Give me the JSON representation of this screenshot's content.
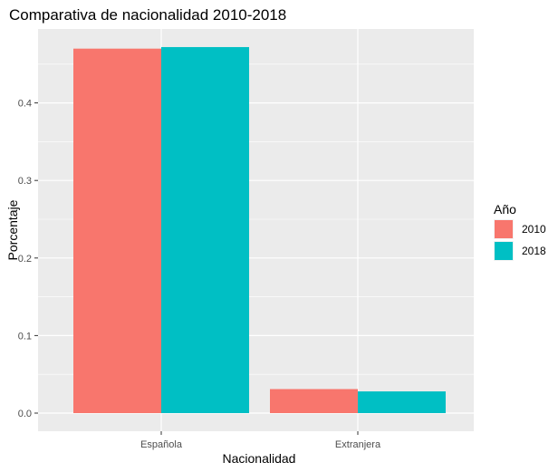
{
  "chart_data": {
    "type": "bar",
    "title": "Comparativa de nacionalidad 2010-2018",
    "xlabel": "Nacionalidad",
    "ylabel": "Porcentaje",
    "categories": [
      "Española",
      "Extranjera"
    ],
    "series": [
      {
        "name": "2010",
        "values": [
          0.47,
          0.031
        ]
      },
      {
        "name": "2018",
        "values": [
          0.472,
          0.028
        ]
      }
    ],
    "ylim": [
      0,
      0.5
    ],
    "yticks": [
      "0.0",
      "0.1",
      "0.2",
      "0.3",
      "0.4"
    ],
    "ytick_values": [
      0,
      0.1,
      0.2,
      0.3,
      0.4
    ],
    "grid": true,
    "legend": {
      "title": "Año",
      "position": "right"
    },
    "colors": {
      "2010": "#F8766D",
      "2018": "#00BFC4",
      "panel": "#EBEBEB",
      "grid": "#FFFFFF"
    }
  }
}
